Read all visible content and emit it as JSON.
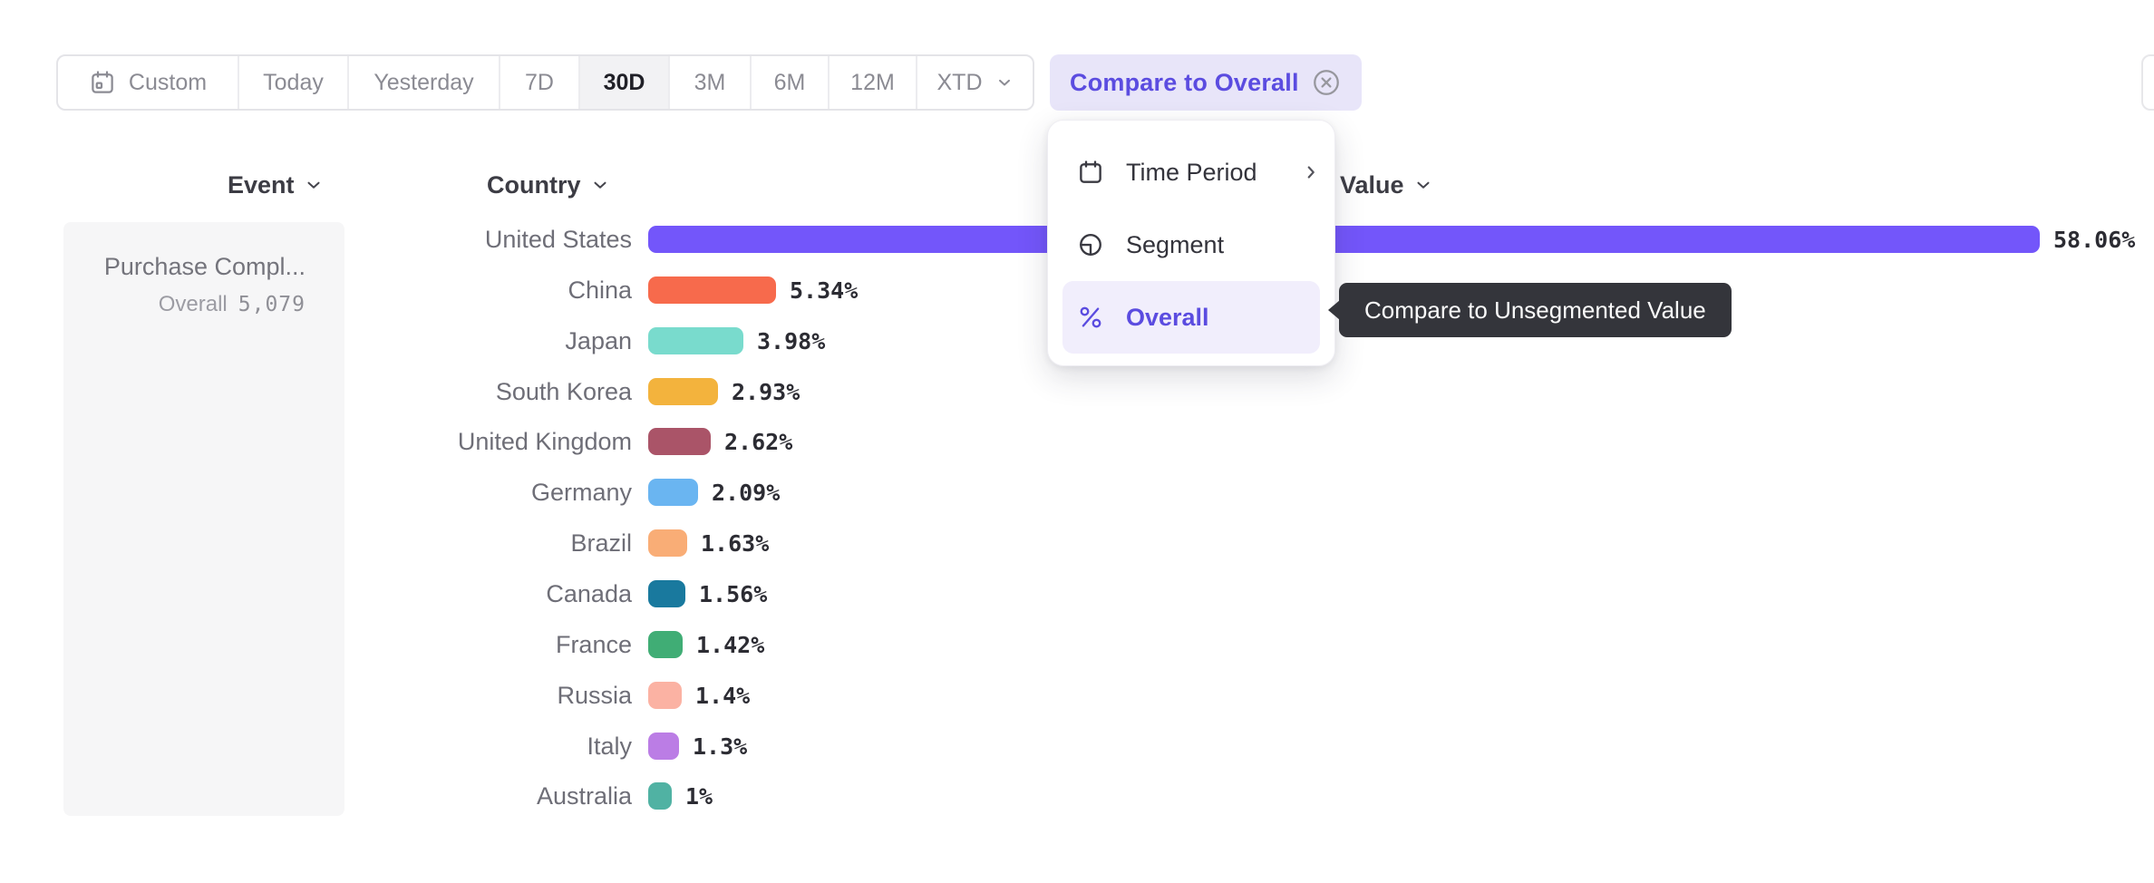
{
  "toolbar": {
    "items": [
      {
        "label": "Custom",
        "icon": "calendar-icon"
      },
      {
        "label": "Today"
      },
      {
        "label": "Yesterday"
      },
      {
        "label": "7D"
      },
      {
        "label": "30D",
        "selected": true
      },
      {
        "label": "3M"
      },
      {
        "label": "6M"
      },
      {
        "label": "12M"
      },
      {
        "label": "XTD",
        "trailing_icon": "chevron-down-icon"
      }
    ]
  },
  "compare_button": {
    "label": "Compare to Overall",
    "close_icon": "x-circle-icon",
    "text_color": "#5b4ce0",
    "background": "#e8e5f9"
  },
  "menu": {
    "items": [
      {
        "label": "Time Period",
        "icon": "calendar-icon",
        "trailing_icon": "chevron-right-icon"
      },
      {
        "label": "Segment",
        "icon": "segment-icon"
      },
      {
        "label": "Overall",
        "icon": "percent-icon",
        "active": true
      }
    ]
  },
  "tooltip": {
    "text": "Compare to Unsegmented Value",
    "background": "#34353b"
  },
  "columns": {
    "event": {
      "label": "Event"
    },
    "country": {
      "label": "Country"
    },
    "value": {
      "label": "Value"
    }
  },
  "event_card": {
    "title": "Purchase Compl...",
    "overall_label": "Overall",
    "overall_value": "5,079"
  },
  "colors": {
    "accent_purple": "#5b4ce0",
    "bar_purple": "#7356fa",
    "selected_tab_bg": "#f2f2f4",
    "tooltip_bg": "#34353b"
  },
  "chart_data": {
    "type": "bar",
    "orientation": "horizontal",
    "categories": [
      "United States",
      "China",
      "Japan",
      "South Korea",
      "United Kingdom",
      "Germany",
      "Brazil",
      "Canada",
      "France",
      "Russia",
      "Italy",
      "Australia"
    ],
    "values": [
      58.06,
      5.34,
      3.98,
      2.93,
      2.62,
      2.09,
      1.63,
      1.56,
      1.42,
      1.4,
      1.3,
      1.0
    ],
    "value_labels": [
      "58.06%",
      "5.34%",
      "3.98%",
      "2.93%",
      "2.62%",
      "2.09%",
      "1.63%",
      "1.56%",
      "1.42%",
      "1.4%",
      "1.3%",
      "1%"
    ],
    "colors": [
      "#7356fa",
      "#f76a4c",
      "#79dbcd",
      "#f3b33d",
      "#aa5468",
      "#6ab5f1",
      "#f9ad76",
      "#19799e",
      "#40ad75",
      "#fbb2a3",
      "#bb7de5",
      "#50b2a3"
    ],
    "xlim": [
      0,
      58.06
    ],
    "value_suffix": "%",
    "grid": false,
    "legend": false
  }
}
